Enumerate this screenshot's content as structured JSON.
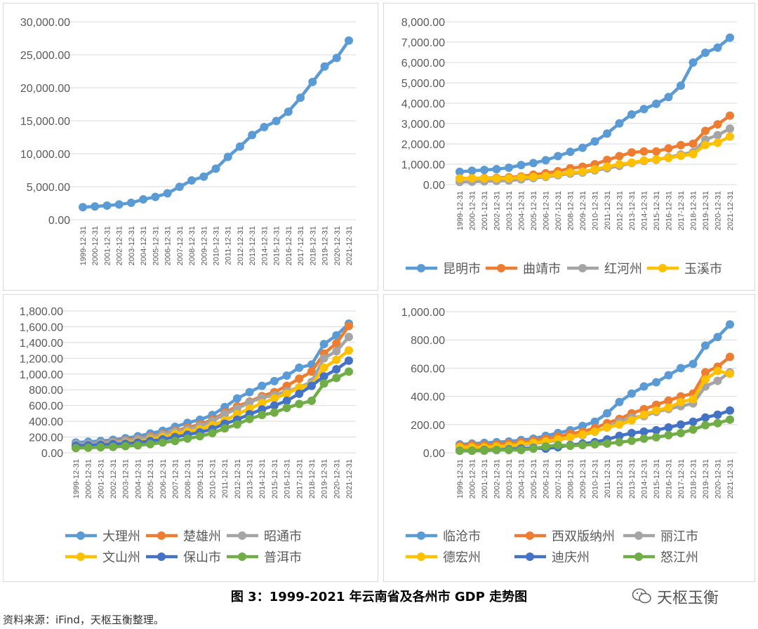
{
  "caption": "图 3：1999-2021 年云南省及各州市 GDP 走势图",
  "source": "资料来源：iFind，天枢玉衡整理。",
  "watermark": {
    "text": "天枢玉衡",
    "icon": "wechat-icon"
  },
  "chart_data": [
    {
      "type": "line",
      "x": [
        "1999-12-31",
        "2000-12-31",
        "2001-12-31",
        "2002-12-31",
        "2003-12-31",
        "2004-12-31",
        "2005-12-31",
        "2006-12-31",
        "2007-12-31",
        "2008-12-31",
        "2009-12-31",
        "2010-12-31",
        "2011-12-31",
        "2012-12-31",
        "2013-12-31",
        "2014-12-31",
        "2015-12-31",
        "2016-12-31",
        "2017-12-31",
        "2018-12-31",
        "2019-12-31",
        "2020-12-31",
        "2021-12-31"
      ],
      "ylim": [
        0,
        30000
      ],
      "yticks": [
        "0.00",
        "5,000.00",
        "10,000.00",
        "15,000.00",
        "20,000.00",
        "25,000.00",
        "30,000.00"
      ],
      "grid": true,
      "legend": "none",
      "series": [
        {
          "color": "#5B9BD5",
          "values": [
            1900,
            2010,
            2140,
            2310,
            2560,
            3080,
            3460,
            4000,
            4990,
            5960,
            6530,
            7740,
            9520,
            11090,
            12830,
            14040,
            14960,
            16370,
            18490,
            20880,
            23220,
            24520,
            27150
          ]
        }
      ]
    },
    {
      "type": "line",
      "x": [
        "1999-12-31",
        "2000-12-31",
        "2001-12-31",
        "2002-12-31",
        "2003-12-31",
        "2004-12-31",
        "2005-12-31",
        "2006-12-31",
        "2007-12-31",
        "2008-12-31",
        "2009-12-31",
        "2010-12-31",
        "2011-12-31",
        "2012-12-31",
        "2013-12-31",
        "2014-12-31",
        "2015-12-31",
        "2016-12-31",
        "2017-12-31",
        "2018-12-31",
        "2019-12-31",
        "2020-12-31",
        "2021-12-31"
      ],
      "ylim": [
        0,
        8000
      ],
      "yticks": [
        "0.00",
        "1,000.00",
        "2,000.00",
        "3,000.00",
        "4,000.00",
        "5,000.00",
        "6,000.00",
        "7,000.00",
        "8,000.00"
      ],
      "grid": true,
      "legend": "bottom",
      "series": [
        {
          "name": "昆明市",
          "color": "#5B9BD5",
          "values": [
            630,
            680,
            720,
            760,
            830,
            960,
            1060,
            1200,
            1400,
            1610,
            1810,
            2120,
            2510,
            3010,
            3450,
            3710,
            3970,
            4300,
            4860,
            6000,
            6480,
            6730,
            7220
          ]
        },
        {
          "name": "曲靖市",
          "color": "#ED7D31",
          "values": [
            300,
            310,
            320,
            330,
            360,
            400,
            490,
            560,
            660,
            800,
            880,
            1000,
            1210,
            1400,
            1580,
            1630,
            1630,
            1780,
            1940,
            2010,
            2640,
            2960,
            3390
          ]
        },
        {
          "name": "红河州",
          "color": "#A5A5A5",
          "values": [
            130,
            140,
            160,
            180,
            200,
            260,
            320,
            380,
            460,
            540,
            590,
            700,
            800,
            920,
            1060,
            1160,
            1220,
            1340,
            1480,
            1590,
            2210,
            2430,
            2750
          ]
        },
        {
          "name": "玉溪市",
          "color": "#FFC000",
          "values": [
            300,
            310,
            300,
            300,
            310,
            360,
            380,
            420,
            510,
            600,
            640,
            750,
            880,
            1000,
            1080,
            1180,
            1240,
            1310,
            1420,
            1500,
            1950,
            2060,
            2360
          ]
        }
      ]
    },
    {
      "type": "line",
      "x": [
        "1999-12-31",
        "2000-12-31",
        "2001-12-31",
        "2002-12-31",
        "2003-12-31",
        "2004-12-31",
        "2005-12-31",
        "2006-12-31",
        "2007-12-31",
        "2008-12-31",
        "2009-12-31",
        "2010-12-31",
        "2011-12-31",
        "2012-12-31",
        "2013-12-31",
        "2014-12-31",
        "2015-12-31",
        "2016-12-31",
        "2017-12-31",
        "2018-12-31",
        "2019-12-31",
        "2020-12-31",
        "2021-12-31"
      ],
      "ylim": [
        0,
        1800
      ],
      "yticks": [
        "0.00",
        "200.00",
        "400.00",
        "600.00",
        "800.00",
        "1,000.00",
        "1,200.00",
        "1,400.00",
        "1,600.00",
        "1,800.00"
      ],
      "grid": true,
      "legend": "bottom",
      "series": [
        {
          "name": "大理州",
          "color": "#5B9BD5",
          "values": [
            130,
            140,
            150,
            165,
            185,
            210,
            245,
            280,
            330,
            380,
            420,
            480,
            580,
            690,
            770,
            850,
            910,
            980,
            1080,
            1120,
            1380,
            1490,
            1640
          ]
        },
        {
          "name": "楚雄州",
          "color": "#ED7D31",
          "values": [
            100,
            110,
            125,
            140,
            160,
            180,
            210,
            240,
            280,
            320,
            360,
            420,
            510,
            590,
            650,
            720,
            770,
            850,
            940,
            1030,
            1260,
            1390,
            1610
          ]
        },
        {
          "name": "昭通市",
          "color": "#A5A5A5",
          "values": [
            110,
            115,
            120,
            135,
            150,
            170,
            200,
            230,
            270,
            300,
            340,
            400,
            490,
            560,
            640,
            700,
            730,
            780,
            830,
            900,
            1200,
            1290,
            1470
          ]
        },
        {
          "name": "文山州",
          "color": "#FFC000",
          "values": [
            80,
            90,
            100,
            110,
            125,
            140,
            170,
            200,
            240,
            270,
            300,
            350,
            410,
            490,
            560,
            630,
            690,
            750,
            830,
            860,
            1080,
            1180,
            1300
          ]
        },
        {
          "name": "保山市",
          "color": "#4472C4",
          "values": [
            90,
            95,
            100,
            110,
            115,
            130,
            150,
            170,
            200,
            230,
            260,
            300,
            370,
            420,
            490,
            550,
            600,
            660,
            750,
            850,
            970,
            1060,
            1170
          ]
        },
        {
          "name": "普洱市",
          "color": "#70AD47",
          "values": [
            60,
            65,
            70,
            75,
            85,
            95,
            110,
            130,
            150,
            180,
            210,
            250,
            310,
            360,
            430,
            480,
            510,
            570,
            620,
            660,
            880,
            950,
            1030
          ]
        }
      ]
    },
    {
      "type": "line",
      "x": [
        "1999-12-31",
        "2000-12-31",
        "2001-12-31",
        "2002-12-31",
        "2003-12-31",
        "2004-12-31",
        "2005-12-31",
        "2006-12-31",
        "2007-12-31",
        "2008-12-31",
        "2009-12-31",
        "2010-12-31",
        "2011-12-31",
        "2012-12-31",
        "2013-12-31",
        "2014-12-31",
        "2015-12-31",
        "2016-12-31",
        "2017-12-31",
        "2018-12-31",
        "2019-12-31",
        "2020-12-31",
        "2021-12-31"
      ],
      "ylim": [
        0,
        1000
      ],
      "yticks": [
        "0.00",
        "200.00",
        "400.00",
        "600.00",
        "800.00",
        "1,000.00"
      ],
      "grid": true,
      "legend": "bottom",
      "series": [
        {
          "name": "临沧市",
          "color": "#5B9BD5",
          "values": [
            60,
            65,
            70,
            75,
            80,
            90,
            100,
            120,
            140,
            160,
            190,
            220,
            280,
            360,
            420,
            470,
            500,
            550,
            600,
            630,
            760,
            820,
            910
          ]
        },
        {
          "name": "西双版纳州",
          "color": "#ED7D31",
          "values": [
            50,
            55,
            55,
            60,
            65,
            75,
            85,
            100,
            115,
            135,
            150,
            175,
            210,
            240,
            280,
            310,
            340,
            370,
            400,
            420,
            570,
            610,
            680
          ]
        },
        {
          "name": "丽江市",
          "color": "#A5A5A5",
          "values": [
            30,
            30,
            35,
            40,
            45,
            55,
            65,
            75,
            90,
            110,
            125,
            150,
            180,
            220,
            250,
            260,
            290,
            310,
            330,
            350,
            470,
            510,
            570
          ]
        },
        {
          "name": "德宏州",
          "color": "#FFC000",
          "values": [
            40,
            40,
            40,
            45,
            50,
            60,
            70,
            80,
            95,
            110,
            130,
            150,
            180,
            200,
            230,
            270,
            300,
            320,
            360,
            380,
            520,
            580,
            560
          ]
        },
        {
          "name": "迪庆州",
          "color": "#4472C4",
          "values": [
            15,
            15,
            20,
            20,
            25,
            30,
            35,
            30,
            40,
            55,
            65,
            75,
            95,
            120,
            140,
            150,
            160,
            180,
            200,
            220,
            250,
            270,
            300
          ]
        },
        {
          "name": "怒江州",
          "color": "#70AD47",
          "values": [
            15,
            15,
            15,
            20,
            20,
            20,
            30,
            45,
            55,
            50,
            55,
            60,
            65,
            75,
            85,
            100,
            110,
            125,
            140,
            165,
            195,
            210,
            235
          ]
        }
      ]
    }
  ]
}
